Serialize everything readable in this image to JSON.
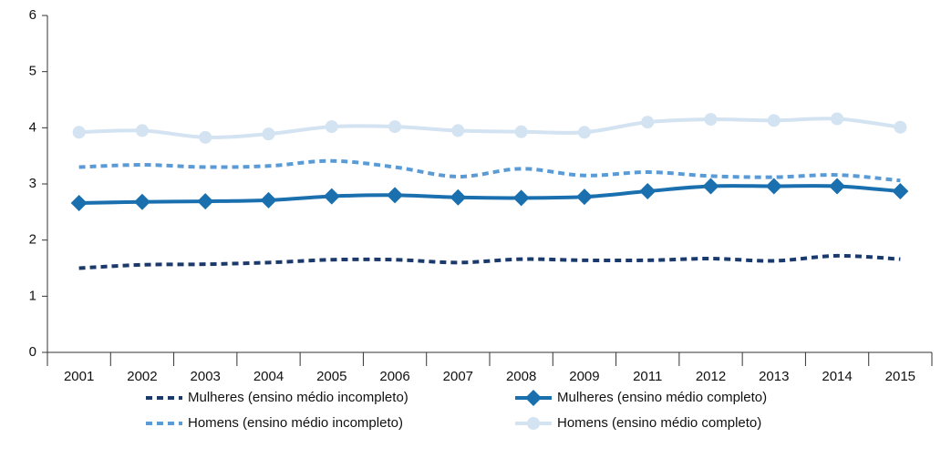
{
  "chart_data": {
    "type": "line",
    "categories": [
      "2001",
      "2002",
      "2003",
      "2004",
      "2005",
      "2006",
      "2007",
      "2008",
      "2009",
      "2011",
      "2012",
      "2013",
      "2014",
      "2015"
    ],
    "series": [
      {
        "name": "Mulheres (ensino médio incompleto)",
        "color": "#1b3a6b",
        "line_style": "dashed",
        "marker": "none",
        "values": [
          1.5,
          1.56,
          1.57,
          1.6,
          1.65,
          1.65,
          1.6,
          1.66,
          1.64,
          1.64,
          1.67,
          1.63,
          1.72,
          1.66
        ]
      },
      {
        "name": "Mulheres (ensino médio completo)",
        "color": "#1a6faf",
        "line_style": "solid",
        "marker": "diamond",
        "values": [
          2.66,
          2.68,
          2.69,
          2.71,
          2.78,
          2.8,
          2.76,
          2.75,
          2.77,
          2.87,
          2.96,
          2.96,
          2.96,
          2.87
        ]
      },
      {
        "name": "Homens (ensino médio incompleto)",
        "color": "#5b9bd5",
        "line_style": "dashed",
        "marker": "none",
        "values": [
          3.3,
          3.34,
          3.3,
          3.32,
          3.41,
          3.3,
          3.13,
          3.27,
          3.15,
          3.21,
          3.14,
          3.12,
          3.16,
          3.06
        ]
      },
      {
        "name": "Homens (ensino médio completo)",
        "color": "#d3e3f1",
        "line_style": "solid",
        "marker": "circle",
        "values": [
          3.92,
          3.95,
          3.83,
          3.89,
          4.02,
          4.02,
          3.95,
          3.93,
          3.92,
          4.1,
          4.15,
          4.13,
          4.16,
          4.01
        ]
      }
    ],
    "ylim": [
      0,
      6
    ],
    "yticks": [
      0,
      1,
      2,
      3,
      4,
      5,
      6
    ],
    "grid": false,
    "legend": "bottom"
  }
}
